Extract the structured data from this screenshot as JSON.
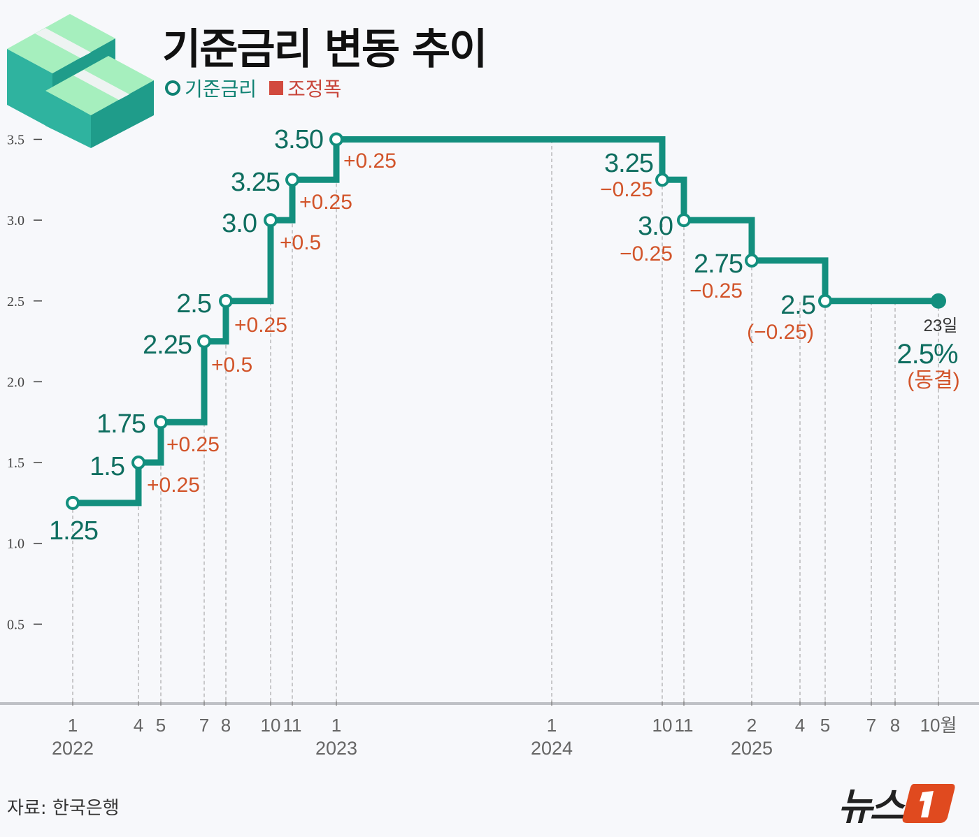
{
  "title": "기준금리 변동 추이",
  "legend": {
    "rate": "기준금리",
    "change": "조정폭"
  },
  "colors": {
    "rate_line": "#138f7e",
    "rate_label": "#0f6e60",
    "change_label": "#d2542a",
    "legend_change": "#d24a3e",
    "axis": "#bfc1c6",
    "grid": "#a9a9a9"
  },
  "source": "자료: 한국은행",
  "logo": "뉴스1",
  "icon": "money-stack-icon",
  "chart_data": {
    "type": "line",
    "step": true,
    "ylim": [
      0,
      3.5
    ],
    "yticks": [
      "0.5",
      "1.0",
      "1.5",
      "2.0",
      "2.5",
      "3.0",
      "3.5"
    ],
    "grid": "vertical-dashed",
    "points": [
      {
        "date": "2022-01",
        "rate": 1.25,
        "label": "1.25",
        "change": ""
      },
      {
        "date": "2022-04",
        "rate": 1.5,
        "label": "1.5",
        "change": "+0.25"
      },
      {
        "date": "2022-05",
        "rate": 1.75,
        "label": "1.75",
        "change": "+0.25"
      },
      {
        "date": "2022-07",
        "rate": 2.25,
        "label": "2.25",
        "change": "+0.5"
      },
      {
        "date": "2022-08",
        "rate": 2.5,
        "label": "2.5",
        "change": "+0.25"
      },
      {
        "date": "2022-10",
        "rate": 3.0,
        "label": "3.0",
        "change": "+0.5"
      },
      {
        "date": "2022-11",
        "rate": 3.25,
        "label": "3.25",
        "change": "+0.25"
      },
      {
        "date": "2023-01",
        "rate": 3.5,
        "label": "3.50",
        "change": "+0.25"
      },
      {
        "date": "2024-10",
        "rate": 3.25,
        "label": "3.25",
        "change": "−0.25"
      },
      {
        "date": "2024-11",
        "rate": 3.0,
        "label": "3.0",
        "change": "−0.25"
      },
      {
        "date": "2025-02",
        "rate": 2.75,
        "label": "2.75",
        "change": "−0.25"
      },
      {
        "date": "2025-05",
        "rate": 2.5,
        "label": "2.5",
        "change": "(−0.25)"
      },
      {
        "date": "2025-10",
        "rate": 2.5,
        "label": "2.5%",
        "change": "(동결)",
        "day": "23일"
      }
    ],
    "xticks": [
      {
        "date": "2022-01",
        "month": "1",
        "year": "2022"
      },
      {
        "date": "2022-04",
        "month": "4"
      },
      {
        "date": "2022-05",
        "month": "5"
      },
      {
        "date": "2022-07",
        "month": "7"
      },
      {
        "date": "2022-08",
        "month": "8"
      },
      {
        "date": "2022-10",
        "month": "10"
      },
      {
        "date": "2022-11",
        "month": "11"
      },
      {
        "date": "2023-01",
        "month": "1",
        "year": "2023"
      },
      {
        "date": "2024-01",
        "month": "1",
        "year": "2024"
      },
      {
        "date": "2024-10",
        "month": "10"
      },
      {
        "date": "2024-11",
        "month": "11"
      },
      {
        "date": "2025-02",
        "month": "2",
        "year": "2025"
      },
      {
        "date": "2025-04",
        "month": "4"
      },
      {
        "date": "2025-05",
        "month": "5"
      },
      {
        "date": "2025-07",
        "month": "7"
      },
      {
        "date": "2025-08",
        "month": "8"
      },
      {
        "date": "2025-10",
        "month": "10월"
      }
    ]
  }
}
